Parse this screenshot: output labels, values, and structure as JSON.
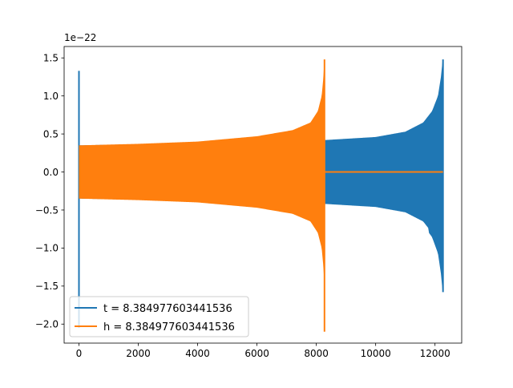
{
  "chart_data": {
    "type": "line",
    "title": "",
    "xlabel": "",
    "ylabel": "",
    "offset_text": "1e−22",
    "xlim": [
      -500,
      12900
    ],
    "ylim": [
      -2.25,
      1.65
    ],
    "xticks": [
      0,
      2000,
      4000,
      6000,
      8000,
      10000,
      12000
    ],
    "yticks": [
      -2.0,
      -1.5,
      -1.0,
      -0.5,
      0.0,
      0.5,
      1.0,
      1.5
    ],
    "xtick_labels": [
      "0",
      "2000",
      "4000",
      "6000",
      "8000",
      "10000",
      "12000"
    ],
    "ytick_labels": [
      "−2.0",
      "−1.5",
      "−1.0",
      "−0.5",
      "0.0",
      "0.5",
      "1.0",
      "1.5"
    ],
    "grid": false,
    "legend_position": "lower-left",
    "series": [
      {
        "name": "t = 8.384977603441536",
        "color": "#1f77b4",
        "spike_x": 0,
        "spike_range": [
          -2.05,
          1.33
        ],
        "envelope": [
          {
            "x": 0,
            "y": 0.35
          },
          {
            "x": 2000,
            "y": 0.365
          },
          {
            "x": 4000,
            "y": 0.385
          },
          {
            "x": 6000,
            "y": 0.42
          },
          {
            "x": 8000,
            "y": 0.48
          },
          {
            "x": 8300,
            "y": 0.42
          },
          {
            "x": 10000,
            "y": 0.46
          },
          {
            "x": 11000,
            "y": 0.53
          },
          {
            "x": 11600,
            "y": 0.65
          },
          {
            "x": 11900,
            "y": 0.8
          },
          {
            "x": 12100,
            "y": 1.0
          },
          {
            "x": 12200,
            "y": 1.25
          },
          {
            "x": 12260,
            "y": 1.48
          }
        ],
        "end_range": [
          -1.58,
          1.48
        ],
        "end_x": 12270
      },
      {
        "name": "h = 8.384977603441536",
        "color": "#ff7f0e",
        "envelope": [
          {
            "x": 0,
            "y": 0.35
          },
          {
            "x": 2000,
            "y": 0.37
          },
          {
            "x": 4000,
            "y": 0.4
          },
          {
            "x": 6000,
            "y": 0.47
          },
          {
            "x": 7200,
            "y": 0.55
          },
          {
            "x": 7800,
            "y": 0.65
          },
          {
            "x": 8050,
            "y": 0.8
          },
          {
            "x": 8180,
            "y": 1.0
          },
          {
            "x": 8240,
            "y": 1.25
          },
          {
            "x": 8270,
            "y": 1.48
          }
        ],
        "end_range": [
          -2.1,
          1.48
        ],
        "end_x": 8275,
        "tail_x_end": 12270,
        "tail_y": 0.0
      }
    ]
  }
}
